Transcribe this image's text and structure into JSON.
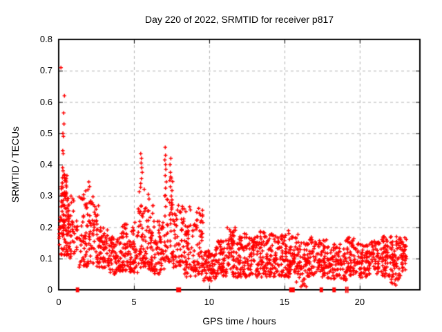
{
  "chart_data": {
    "type": "scatter",
    "title": "Day 220 of 2022, SRMTID for receiver p817",
    "xlabel": "GPS time / hours",
    "ylabel": "SRMTID / TECUs",
    "xlim": [
      0,
      24
    ],
    "ylim": [
      0,
      0.8
    ],
    "x_ticks": [
      {
        "v": 0,
        "label": "0"
      },
      {
        "v": 5,
        "label": "5"
      },
      {
        "v": 10,
        "label": "10"
      },
      {
        "v": 15,
        "label": "15"
      },
      {
        "v": 20,
        "label": "20"
      }
    ],
    "y_ticks": [
      {
        "v": 0,
        "label": "0"
      },
      {
        "v": 0.1,
        "label": "0.1"
      },
      {
        "v": 0.2,
        "label": "0.2"
      },
      {
        "v": 0.3,
        "label": "0.3"
      },
      {
        "v": 0.4,
        "label": "0.4"
      },
      {
        "v": 0.5,
        "label": "0.5"
      },
      {
        "v": 0.6,
        "label": "0.6"
      },
      {
        "v": 0.7,
        "label": "0.7"
      },
      {
        "v": 0.8,
        "label": "0.8"
      }
    ],
    "grid": true,
    "legend": "none",
    "marker": "plus",
    "marker_color": "#ff0000",
    "grid_color": "#b0b0b0",
    "border_color": "#000000",
    "background": "#ffffff",
    "seed": 20220808,
    "density_bins": [
      [
        0.0,
        0.15,
        0.14,
        0.26,
        10,
        1.0
      ],
      [
        0.15,
        0.55,
        0.1,
        0.37,
        85,
        0.9
      ],
      [
        0.55,
        1.05,
        0.1,
        0.3,
        55,
        1.1
      ],
      [
        1.05,
        1.3,
        0.1,
        0.22,
        12,
        1.0
      ],
      [
        1.3,
        2.1,
        0.07,
        0.33,
        70,
        1.2
      ],
      [
        2.1,
        2.65,
        0.07,
        0.3,
        48,
        1.3
      ],
      [
        2.65,
        3.3,
        0.07,
        0.2,
        55,
        1.2
      ],
      [
        3.3,
        4.1,
        0.05,
        0.17,
        62,
        1.1
      ],
      [
        4.1,
        4.7,
        0.06,
        0.21,
        52,
        1.2
      ],
      [
        4.7,
        5.25,
        0.05,
        0.23,
        50,
        1.2
      ],
      [
        5.25,
        5.8,
        0.07,
        0.33,
        52,
        1.4
      ],
      [
        5.8,
        6.35,
        0.06,
        0.27,
        48,
        1.4
      ],
      [
        6.35,
        7.0,
        0.05,
        0.22,
        55,
        1.2
      ],
      [
        7.0,
        7.6,
        0.09,
        0.37,
        52,
        1.3
      ],
      [
        7.6,
        8.35,
        0.07,
        0.27,
        60,
        1.2
      ],
      [
        8.35,
        9.1,
        0.04,
        0.21,
        62,
        1.2
      ],
      [
        9.1,
        9.65,
        0.05,
        0.26,
        48,
        1.3
      ],
      [
        9.65,
        10.45,
        0.025,
        0.13,
        65,
        1.0
      ],
      [
        10.45,
        11.1,
        0.04,
        0.17,
        55,
        1.1
      ],
      [
        11.1,
        11.8,
        0.04,
        0.2,
        60,
        1.2
      ],
      [
        11.8,
        12.5,
        0.04,
        0.18,
        60,
        1.1
      ],
      [
        12.5,
        13.2,
        0.04,
        0.17,
        60,
        1.1
      ],
      [
        13.2,
        13.9,
        0.04,
        0.19,
        60,
        1.2
      ],
      [
        13.9,
        14.6,
        0.04,
        0.18,
        60,
        1.1
      ],
      [
        14.6,
        15.3,
        0.04,
        0.19,
        60,
        1.2
      ],
      [
        15.3,
        15.95,
        0.05,
        0.18,
        55,
        1.1
      ],
      [
        15.95,
        16.4,
        0.01,
        0.15,
        30,
        1.0
      ],
      [
        16.4,
        17.1,
        0.04,
        0.17,
        55,
        1.1
      ],
      [
        17.1,
        17.8,
        0.04,
        0.16,
        55,
        1.1
      ],
      [
        17.8,
        18.5,
        0.035,
        0.15,
        55,
        1.1
      ],
      [
        18.5,
        19.2,
        0.03,
        0.16,
        50,
        1.1
      ],
      [
        19.2,
        19.9,
        0.045,
        0.17,
        55,
        1.1
      ],
      [
        19.9,
        20.6,
        0.04,
        0.15,
        55,
        1.1
      ],
      [
        20.6,
        21.3,
        0.05,
        0.16,
        55,
        1.1
      ],
      [
        21.3,
        22.0,
        0.04,
        0.17,
        60,
        1.1
      ],
      [
        22.0,
        22.7,
        0.02,
        0.17,
        60,
        1.0
      ],
      [
        22.7,
        23.1,
        0.06,
        0.17,
        40,
        1.0
      ]
    ],
    "outlier_points": [
      [
        0.15,
        0.71
      ],
      [
        0.38,
        0.62
      ],
      [
        0.33,
        0.565
      ],
      [
        0.35,
        0.53
      ],
      [
        0.28,
        0.5
      ],
      [
        0.31,
        0.49
      ],
      [
        0.27,
        0.445
      ],
      [
        0.3,
        0.435
      ],
      [
        0.26,
        0.39
      ],
      [
        0.29,
        0.38
      ],
      [
        0.55,
        0.365
      ],
      [
        0.45,
        0.355
      ],
      [
        0.5,
        0.345
      ],
      [
        2.0,
        0.345
      ],
      [
        2.05,
        0.33
      ],
      [
        1.95,
        0.32
      ],
      [
        5.45,
        0.435
      ],
      [
        5.5,
        0.42
      ],
      [
        5.48,
        0.405
      ],
      [
        5.52,
        0.39
      ],
      [
        5.55,
        0.375
      ],
      [
        5.5,
        0.355
      ],
      [
        5.45,
        0.34
      ],
      [
        5.95,
        0.305
      ],
      [
        6.0,
        0.29
      ],
      [
        7.08,
        0.455
      ],
      [
        7.1,
        0.43
      ],
      [
        7.05,
        0.415
      ],
      [
        7.1,
        0.4
      ],
      [
        7.12,
        0.385
      ],
      [
        7.08,
        0.365
      ],
      [
        7.15,
        0.345
      ],
      [
        7.1,
        0.325
      ],
      [
        7.05,
        0.3
      ],
      [
        7.45,
        0.42
      ],
      [
        7.4,
        0.4
      ],
      [
        7.42,
        0.375
      ],
      [
        7.38,
        0.35
      ],
      [
        8.45,
        0.25
      ],
      [
        8.7,
        0.265
      ],
      [
        8.75,
        0.255
      ],
      [
        9.3,
        0.26
      ],
      [
        9.35,
        0.245
      ],
      [
        15.8,
        0.025
      ],
      [
        16.1,
        0.01
      ],
      [
        16.2,
        0.015
      ],
      [
        16.3,
        0.02
      ],
      [
        16.45,
        0.01
      ],
      [
        22.1,
        0.024
      ],
      [
        22.3,
        0.02
      ],
      [
        22.4,
        0.015
      ]
    ],
    "zero_square_markers": [
      {
        "t": 1.25,
        "w": 5
      },
      {
        "t": 7.97,
        "w": 7
      },
      {
        "t": 15.5,
        "w": 8
      },
      {
        "t": 17.45,
        "w": 5
      },
      {
        "t": 18.3,
        "w": 5
      }
    ],
    "zero_bar_markers": [
      19.08,
      19.21
    ]
  }
}
